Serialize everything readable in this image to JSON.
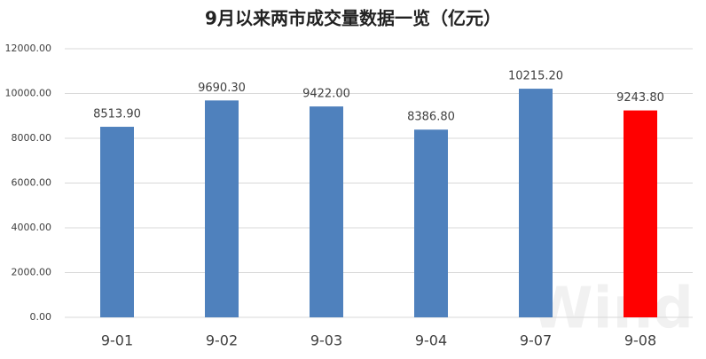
{
  "chart_data": {
    "type": "bar",
    "title": "9月以来两市成交量数据一览（亿元）",
    "categories": [
      "9-01",
      "9-02",
      "9-03",
      "9-04",
      "9-07",
      "9-08"
    ],
    "values": [
      8513.9,
      9690.3,
      9422,
      8386.8,
      10215.2,
      9243.8
    ],
    "value_labels": [
      "8513.90",
      "9690.30",
      "9422.00",
      "8386.80",
      "10215.20",
      "9243.80"
    ],
    "colors": [
      "#4f81bd",
      "#4f81bd",
      "#4f81bd",
      "#4f81bd",
      "#4f81bd",
      "#ff0000"
    ],
    "ylim": [
      0,
      12000
    ],
    "yticks": [
      {
        "value": 0,
        "label": "0.00"
      },
      {
        "value": 2000,
        "label": "2000.00"
      },
      {
        "value": 4000,
        "label": "4000.00"
      },
      {
        "value": 6000,
        "label": "6000.00"
      },
      {
        "value": 8000,
        "label": "8000.00"
      },
      {
        "value": 10000,
        "label": "10000.00"
      },
      {
        "value": 12000,
        "label": "12000.00"
      }
    ],
    "grid": true,
    "watermark": "Wind"
  }
}
